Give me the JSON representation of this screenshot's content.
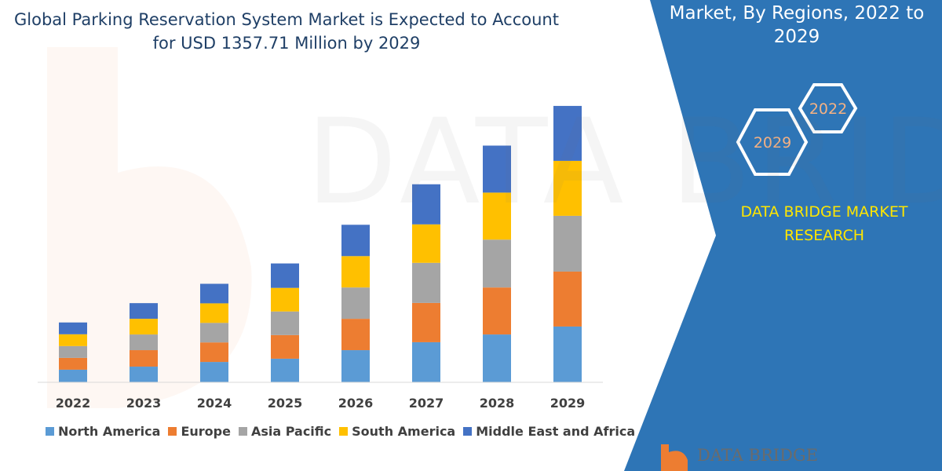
{
  "title_line1": "Global Parking Reservation System Market is Expected to Account",
  "title_line2": "for USD 1357.71 Million by 2029",
  "side_title": "Market, By Regions, 2022 to 2029",
  "hexagons": [
    "2022",
    "2029"
  ],
  "brand_line1": "DATA BRIDGE MARKET",
  "brand_line2": "RESEARCH",
  "logo_text": "DATA BRIDGE",
  "watermark": "DATA BRIDGE",
  "colors": {
    "panel": "#2e75b6",
    "brand": "#ffe600"
  },
  "chart_data": {
    "type": "bar",
    "stacked": true,
    "categories": [
      "2022",
      "2023",
      "2024",
      "2025",
      "2026",
      "2027",
      "2028",
      "2029"
    ],
    "series": [
      {
        "name": "North America",
        "color": "#5b9bd5",
        "values": [
          62,
          77,
          100,
          116,
          158,
          197,
          235,
          274
        ]
      },
      {
        "name": "Europe",
        "color": "#ed7d31",
        "values": [
          58,
          81,
          96,
          116,
          154,
          193,
          231,
          270
        ]
      },
      {
        "name": "Asia Pacific",
        "color": "#a5a5a5",
        "values": [
          58,
          77,
          96,
          116,
          154,
          197,
          235,
          274
        ]
      },
      {
        "name": "South America",
        "color": "#ffc000",
        "values": [
          58,
          77,
          96,
          116,
          154,
          189,
          231,
          270
        ]
      },
      {
        "name": "Middle East and Africa",
        "color": "#4472c4",
        "values": [
          58,
          77,
          96,
          120,
          154,
          197,
          231,
          270
        ]
      }
    ],
    "ylim": [
      0,
      1400
    ],
    "grid": false,
    "legend_position": "bottom"
  }
}
